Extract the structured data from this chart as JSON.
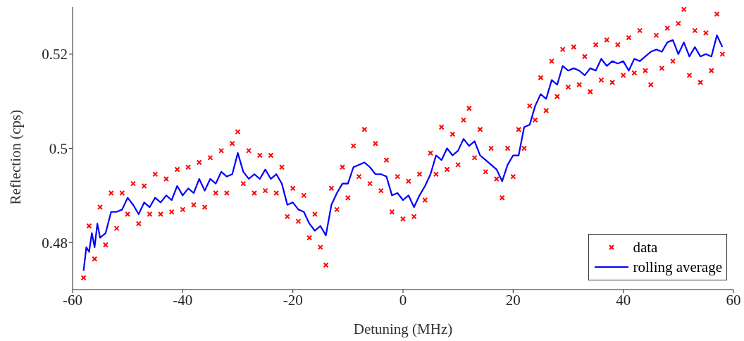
{
  "chart_data": {
    "type": "scatter",
    "xlabel": "Detuning (MHz)",
    "ylabel": "Reflection (cps)",
    "xlim": [
      -60,
      60
    ],
    "xticks": [
      -60,
      -40,
      -20,
      0,
      20,
      40,
      60
    ],
    "ylim": [
      0.47,
      0.53
    ],
    "yticks": [
      0.48,
      0.5,
      0.52
    ],
    "legend": "bottom right",
    "series": [
      {
        "name": "data",
        "color": "#ff0000",
        "marker": "cross",
        "x": [
          -58,
          -57,
          -56,
          -55,
          -54,
          -53,
          -52,
          -51,
          -50,
          -49,
          -48,
          -47,
          -46,
          -45,
          -44,
          -43,
          -42,
          -41,
          -40,
          -39,
          -38,
          -37,
          -36,
          -35,
          -34,
          -33,
          -32,
          -31,
          -30,
          -29,
          -28,
          -27,
          -26,
          -25,
          -24,
          -23,
          -22,
          -21,
          -20,
          -19,
          -18,
          -17,
          -16,
          -15,
          -14,
          -13,
          -12,
          -11,
          -10,
          -9,
          -8,
          -7,
          -6,
          -5,
          -4,
          -3,
          -2,
          -1,
          0,
          1,
          2,
          3,
          4,
          5,
          6,
          7,
          8,
          9,
          10,
          11,
          12,
          13,
          14,
          15,
          16,
          17,
          18,
          19,
          20,
          21,
          22,
          23,
          24,
          25,
          26,
          27,
          28,
          29,
          30,
          31,
          32,
          33,
          34,
          35,
          36,
          37,
          38,
          39,
          40,
          41,
          42,
          43,
          44,
          45,
          46,
          47,
          48,
          49,
          50,
          51,
          52,
          53,
          54,
          55,
          56,
          57,
          58
        ],
        "values": [
          0.4725,
          0.4835,
          0.4765,
          0.4875,
          0.4795,
          0.4905,
          0.483,
          0.4905,
          0.486,
          0.4925,
          0.484,
          0.492,
          0.486,
          0.4945,
          0.486,
          0.4935,
          0.4865,
          0.4955,
          0.487,
          0.496,
          0.488,
          0.497,
          0.4875,
          0.498,
          0.4905,
          0.4995,
          0.4905,
          0.501,
          0.5035,
          0.4925,
          0.4995,
          0.4905,
          0.4985,
          0.491,
          0.4985,
          0.4905,
          0.496,
          0.4855,
          0.4915,
          0.4845,
          0.49,
          0.481,
          0.486,
          0.479,
          0.4752,
          0.4915,
          0.487,
          0.496,
          0.4895,
          0.5005,
          0.494,
          0.504,
          0.4925,
          0.501,
          0.491,
          0.4975,
          0.4865,
          0.494,
          0.485,
          0.493,
          0.4855,
          0.4945,
          0.489,
          0.499,
          0.4945,
          0.5045,
          0.4955,
          0.503,
          0.4965,
          0.506,
          0.5085,
          0.498,
          0.504,
          0.495,
          0.5,
          0.4935,
          0.4895,
          0.5,
          0.494,
          0.504,
          0.5,
          0.509,
          0.506,
          0.515,
          0.508,
          0.5185,
          0.511,
          0.521,
          0.513,
          0.5215,
          0.5135,
          0.5195,
          0.512,
          0.522,
          0.5145,
          0.523,
          0.514,
          0.522,
          0.5155,
          0.5235,
          0.516,
          0.525,
          0.5165,
          0.5135,
          0.524,
          0.517,
          0.5255,
          0.5185,
          0.5265,
          0.5295,
          0.5155,
          0.525,
          0.514,
          0.5245,
          0.5165,
          0.5285,
          0.52
        ]
      },
      {
        "type": "line",
        "name": "rolling average",
        "color": "#0000ff",
        "marker": "none",
        "line_style": "solid",
        "x": [
          -58,
          -57.5,
          -57,
          -56.5,
          -56,
          -55.5,
          -55,
          -54,
          -53,
          -52,
          -51,
          -50,
          -49,
          -48,
          -47,
          -46,
          -45,
          -44,
          -43,
          -42,
          -41,
          -40,
          -39,
          -38,
          -37,
          -36,
          -35,
          -34,
          -33,
          -32,
          -31,
          -30,
          -29,
          -28,
          -27,
          -26,
          -25,
          -24,
          -23,
          -22,
          -21,
          -20,
          -19,
          -18,
          -17,
          -16,
          -15,
          -14,
          -13,
          -12,
          -11,
          -10,
          -9,
          -8,
          -7,
          -6,
          -5,
          -4,
          -3,
          -2,
          -1,
          0,
          1,
          2,
          3,
          4,
          5,
          6,
          7,
          8,
          9,
          10,
          11,
          12,
          13,
          14,
          15,
          16,
          17,
          18,
          19,
          20,
          21,
          22,
          23,
          24,
          25,
          26,
          27,
          28,
          29,
          30,
          31,
          32,
          33,
          34,
          35,
          36,
          37,
          38,
          39,
          40,
          41,
          42,
          43,
          44,
          45,
          46,
          47,
          48,
          49,
          50,
          51,
          52,
          53,
          54,
          55,
          56,
          57,
          58
        ],
        "values": [
          0.474,
          0.479,
          0.478,
          0.482,
          0.479,
          0.484,
          0.481,
          0.482,
          0.4865,
          0.4865,
          0.487,
          0.4895,
          0.488,
          0.486,
          0.4885,
          0.4875,
          0.4895,
          0.4885,
          0.49,
          0.489,
          0.492,
          0.49,
          0.4915,
          0.4905,
          0.4935,
          0.491,
          0.4935,
          0.4925,
          0.495,
          0.494,
          0.4945,
          0.499,
          0.495,
          0.4935,
          0.4945,
          0.4935,
          0.4955,
          0.4935,
          0.4945,
          0.4925,
          0.488,
          0.4885,
          0.487,
          0.4865,
          0.484,
          0.4825,
          0.4835,
          0.4815,
          0.488,
          0.4905,
          0.4925,
          0.4925,
          0.496,
          0.4965,
          0.497,
          0.496,
          0.4945,
          0.4945,
          0.494,
          0.49,
          0.4905,
          0.489,
          0.49,
          0.4875,
          0.49,
          0.492,
          0.4945,
          0.4985,
          0.4975,
          0.5,
          0.4985,
          0.4995,
          0.502,
          0.5005,
          0.5015,
          0.4985,
          0.4975,
          0.4965,
          0.4955,
          0.493,
          0.4965,
          0.4985,
          0.4985,
          0.5045,
          0.505,
          0.509,
          0.5115,
          0.5105,
          0.5145,
          0.5135,
          0.5175,
          0.5165,
          0.517,
          0.5165,
          0.5155,
          0.517,
          0.5165,
          0.519,
          0.5175,
          0.5185,
          0.518,
          0.5185,
          0.5165,
          0.519,
          0.5185,
          0.5195,
          0.5205,
          0.521,
          0.5205,
          0.5225,
          0.523,
          0.52,
          0.5225,
          0.5195,
          0.5215,
          0.5195,
          0.52,
          0.5195,
          0.524,
          0.5215
        ]
      }
    ]
  }
}
